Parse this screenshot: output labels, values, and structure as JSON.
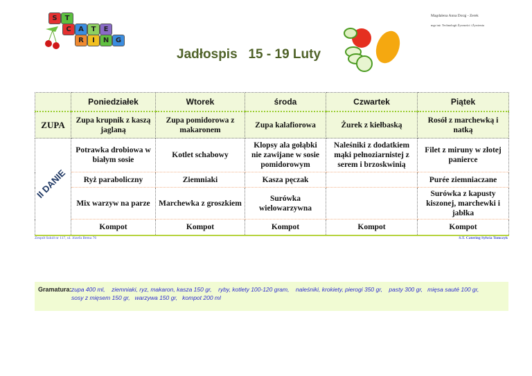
{
  "logo": {
    "text": "ST CATERING",
    "letters": [
      "S",
      "T",
      "C",
      "A",
      "T",
      "E",
      "R",
      "I",
      "N",
      "G"
    ]
  },
  "signature": {
    "name": "Magdalena Anna Dorąj - Zerek",
    "title": "mgr inż. Technologii Żywności i Żywienia"
  },
  "title": "Jadłospis   15 - 19 Luty",
  "table": {
    "days": [
      "Poniedziałek",
      "Wtorek",
      "środa",
      "Czwartek",
      "Piątek"
    ],
    "zupa_label": "ZUPA",
    "zupa": [
      "Zupa krupnik z kaszą jaglaną",
      "Zupa pomidorowa z makaronem",
      "Zupa kalafiorowa",
      "Żurek z kiełbaską",
      "Rosół z marchewką i natką"
    ],
    "danie_label": "II DANIE",
    "main": [
      "Potrawka drobiowa w białym sosie",
      "Kotlet schabowy",
      "Klopsy ala gołąbki nie zawijane w sosie pomidorowym",
      "Naleśniki z dodatkiem mąki pełnoziarnistej z serem i brzoskwinią",
      "Filet z miruny w złotej panierce"
    ],
    "side": [
      "Ryż paraboliczny",
      "Ziemniaki",
      "Kasza pęczak",
      "",
      "Purée ziemniaczane"
    ],
    "veg": [
      "Mix warzyw na parze",
      "Marchewka z groszkiem",
      "Surówka wielowarzywna",
      "",
      "Surówka z kapusty kiszonej, marchewki i jabłka"
    ],
    "drink": [
      "Kompot",
      "Kompot",
      "Kompot",
      "Kompot",
      "Kompot"
    ]
  },
  "footer": {
    "left": "Zespół Szkół nr 117, ul. Józefa Bema 76",
    "right": "S.T. Catering Sylwia Tomczyk"
  },
  "gramatura": {
    "label": "Gramatura:",
    "line1": "zupa 400 ml,    ziemniaki, ryz, makaron, kasza 150 gr,    ryby, kotlety 100-120 gram,    naleśniki, krokiety, pierogi 350 gr,    pasty 300 gr,   mięsa sauté 100 gr,",
    "line2": "sosy z mięsem 150 gr,   warzywa 150 gr,   kompot 200 ml"
  },
  "colors": {
    "title": "#4f6228",
    "header_bg": "#f1f8da",
    "footer_text": "#3a4ad0"
  }
}
